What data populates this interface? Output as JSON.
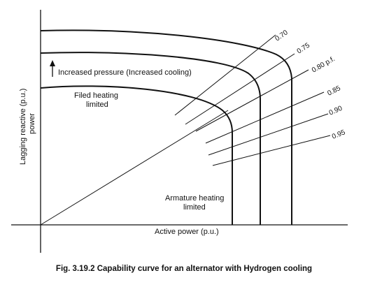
{
  "figure": {
    "caption": "Fig. 3.19.2 Capability curve for an alternator with Hydrogen cooling",
    "x_axis_label": "Active power (p.u.)",
    "y_axis_label_line1": "Lagging reactive (p.u.)",
    "y_axis_label_line2": "power",
    "annotations": {
      "increased_pressure": "Increased pressure (Increased cooling)",
      "field_heating_line1": "Filed heating",
      "field_heating_line2": "limited",
      "armature_heating_line1": "Armature heating",
      "armature_heating_line2": "limited"
    },
    "power_factor_labels": [
      "0.70",
      "0.75",
      "0.80 p.f.",
      "0.85",
      "0.90",
      "0.95"
    ],
    "stroke_color": "#111111"
  }
}
